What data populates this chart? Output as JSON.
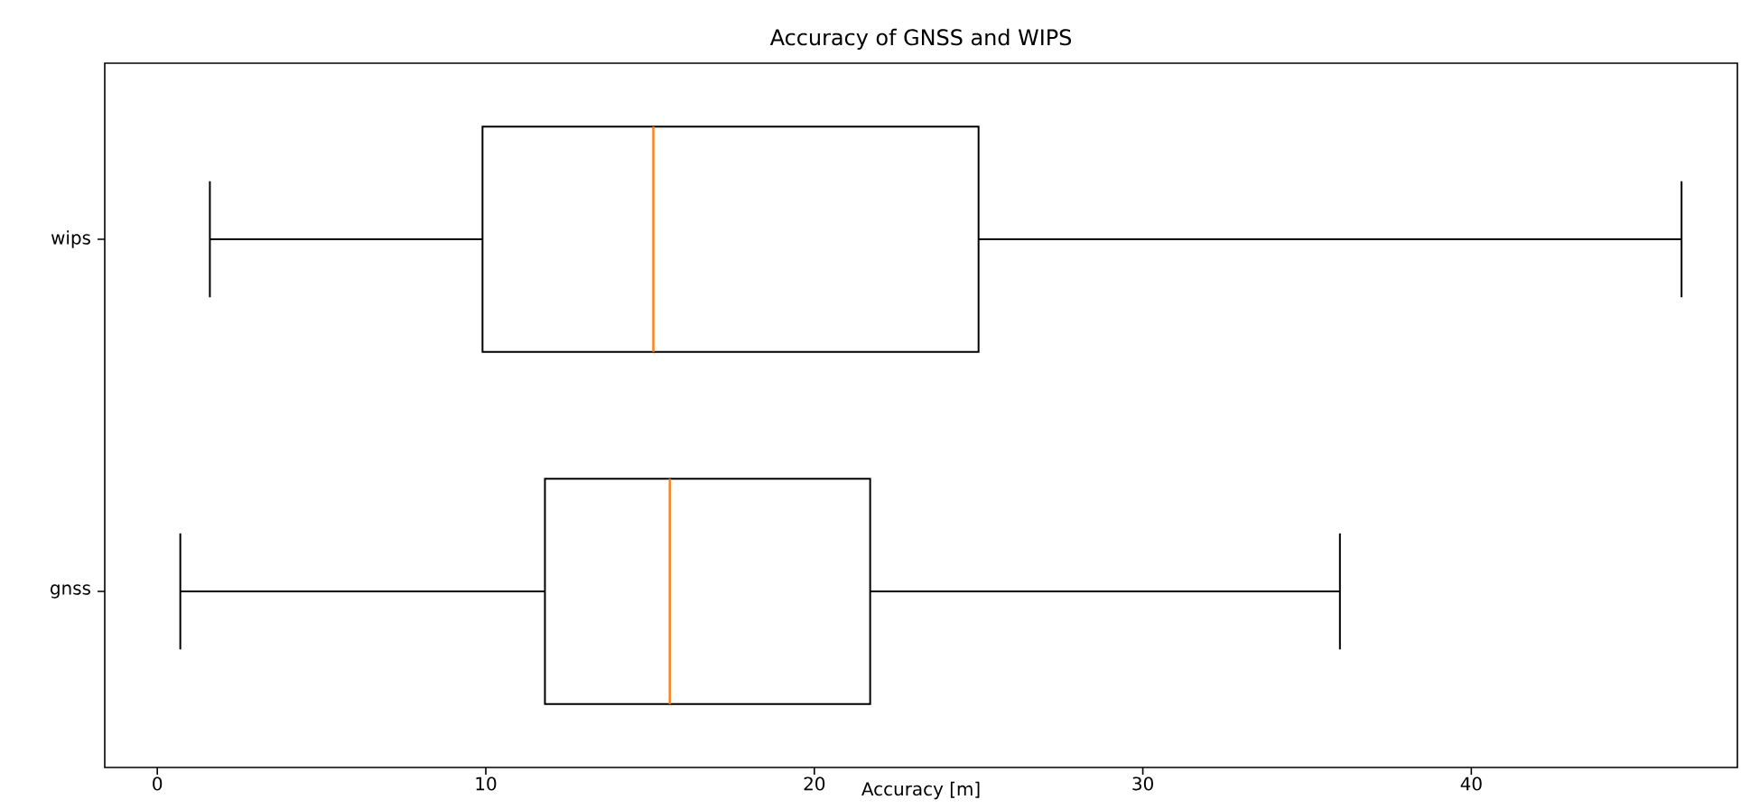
{
  "chart_data": {
    "type": "box",
    "title": "Accuracy of GNSS and WIPS",
    "xlabel": "Accuracy [m]",
    "orientation": "horizontal",
    "categories": [
      "wips",
      "gnss"
    ],
    "boxes": [
      {
        "low": 1.6,
        "q1": 9.9,
        "median": 15.1,
        "q3": 25.0,
        "high": 46.4
      },
      {
        "low": 0.7,
        "q1": 11.8,
        "median": 15.6,
        "q3": 21.7,
        "high": 36.0
      }
    ],
    "color": "#000000",
    "xlim": [
      -1.6,
      48.1
    ],
    "xticks": [
      0,
      10,
      20,
      30,
      40
    ]
  }
}
